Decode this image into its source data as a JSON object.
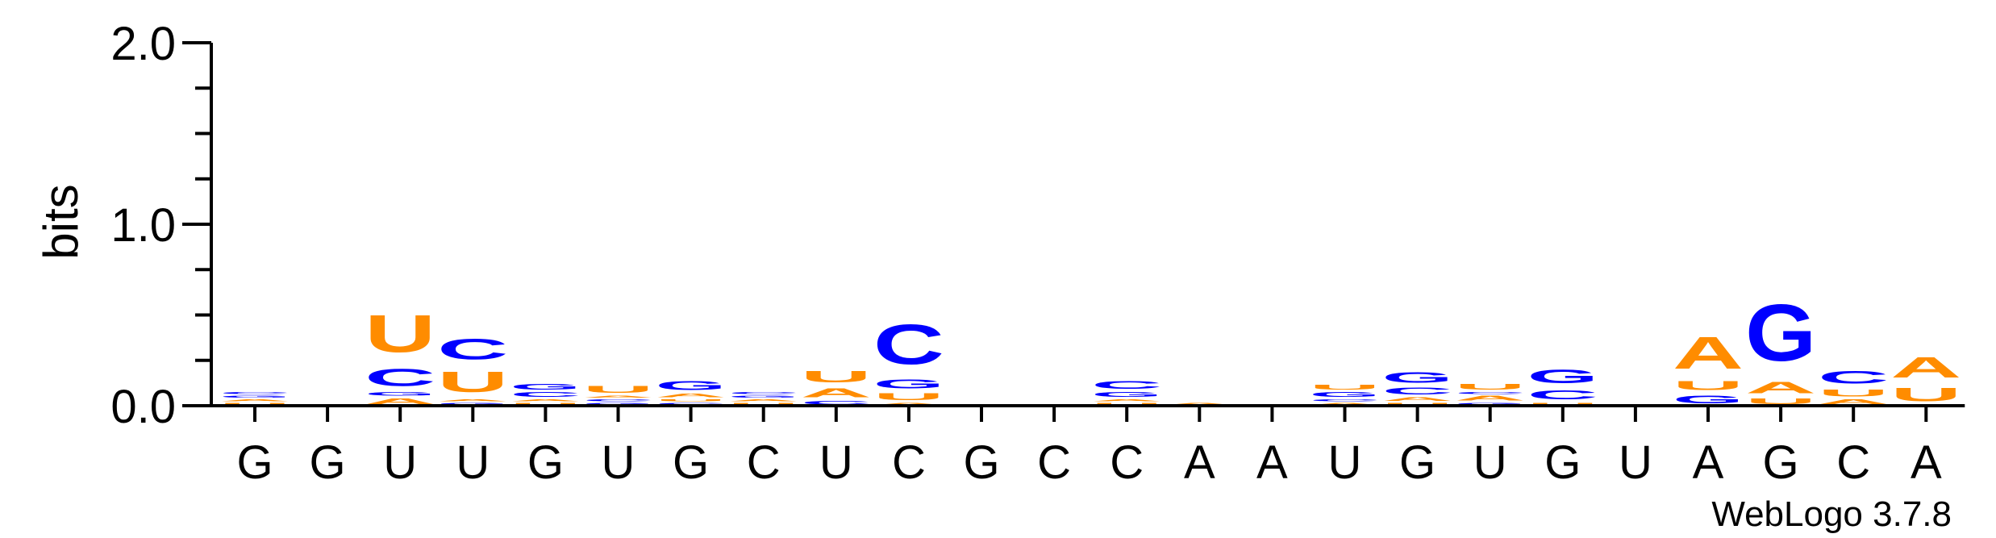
{
  "chart_data": {
    "type": "sequence-logo",
    "ylabel": "bits",
    "ylim": [
      0,
      2.0
    ],
    "yticks": [
      "0.0",
      "1.0",
      "2.0"
    ],
    "credit": "WebLogo 3.7.8",
    "colors": {
      "A": "#ff8c00",
      "U": "#ff8c00",
      "C": "#0000ff",
      "G": "#0000ff"
    },
    "consensus": [
      "G",
      "G",
      "U",
      "U",
      "G",
      "U",
      "G",
      "C",
      "U",
      "C",
      "G",
      "C",
      "C",
      "A",
      "A",
      "U",
      "G",
      "U",
      "G",
      "U",
      "A",
      "G",
      "C",
      "A"
    ],
    "stacks": [
      [
        {
          "l": "U",
          "h": 0.02
        },
        {
          "l": "A",
          "h": 0.02
        },
        {
          "l": "G",
          "h": 0.02
        },
        {
          "l": "C",
          "h": 0.02
        }
      ],
      [],
      [
        {
          "l": "A",
          "h": 0.05
        },
        {
          "l": "G",
          "h": 0.03
        },
        {
          "l": "C",
          "h": 0.15
        },
        {
          "l": "U",
          "h": 0.33
        }
      ],
      [
        {
          "l": "G",
          "h": 0.02
        },
        {
          "l": "A",
          "h": 0.02
        },
        {
          "l": "U",
          "h": 0.18
        },
        {
          "l": "C",
          "h": 0.18
        }
      ],
      [
        {
          "l": "U",
          "h": 0.02
        },
        {
          "l": "A",
          "h": 0.02
        },
        {
          "l": "C",
          "h": 0.04
        },
        {
          "l": "G",
          "h": 0.05
        }
      ],
      [
        {
          "l": "G",
          "h": 0.02
        },
        {
          "l": "C",
          "h": 0.02
        },
        {
          "l": "A",
          "h": 0.02
        },
        {
          "l": "U",
          "h": 0.06
        }
      ],
      [
        {
          "l": "C",
          "h": 0.02
        },
        {
          "l": "U",
          "h": 0.02
        },
        {
          "l": "A",
          "h": 0.03
        },
        {
          "l": "G",
          "h": 0.08
        }
      ],
      [
        {
          "l": "U",
          "h": 0.02
        },
        {
          "l": "A",
          "h": 0.02
        },
        {
          "l": "G",
          "h": 0.02
        },
        {
          "l": "C",
          "h": 0.02
        }
      ],
      [
        {
          "l": "C",
          "h": 0.03
        },
        {
          "l": "A",
          "h": 0.08
        },
        {
          "l": "U",
          "h": 0.1
        }
      ],
      [
        {
          "l": "A",
          "h": 0.02
        },
        {
          "l": "U",
          "h": 0.06
        },
        {
          "l": "G",
          "h": 0.08
        },
        {
          "l": "C",
          "h": 0.35
        }
      ],
      [],
      [],
      [
        {
          "l": "U",
          "h": 0.02
        },
        {
          "l": "A",
          "h": 0.02
        },
        {
          "l": "G",
          "h": 0.04
        },
        {
          "l": "C",
          "h": 0.07
        }
      ],
      [
        {
          "l": "A",
          "h": 0.02
        }
      ],
      [],
      [
        {
          "l": "A",
          "h": 0.02
        },
        {
          "l": "C",
          "h": 0.02
        },
        {
          "l": "G",
          "h": 0.04
        },
        {
          "l": "U",
          "h": 0.04
        }
      ],
      [
        {
          "l": "U",
          "h": 0.02
        },
        {
          "l": "A",
          "h": 0.03
        },
        {
          "l": "C",
          "h": 0.06
        },
        {
          "l": "G",
          "h": 0.09
        }
      ],
      [
        {
          "l": "G",
          "h": 0.02
        },
        {
          "l": "A",
          "h": 0.04
        },
        {
          "l": "C",
          "h": 0.02
        },
        {
          "l": "U",
          "h": 0.05
        }
      ],
      [
        {
          "l": "U",
          "h": 0.02
        },
        {
          "l": "C",
          "h": 0.08
        },
        {
          "l": "G",
          "h": 0.12
        }
      ],
      [],
      [
        {
          "l": "G",
          "h": 0.07
        },
        {
          "l": "U",
          "h": 0.08
        },
        {
          "l": "A",
          "h": 0.28
        }
      ],
      [
        {
          "l": "U",
          "h": 0.05
        },
        {
          "l": "A",
          "h": 0.1
        },
        {
          "l": "G",
          "h": 0.5
        }
      ],
      [
        {
          "l": "A",
          "h": 0.04
        },
        {
          "l": "U",
          "h": 0.06
        },
        {
          "l": "C",
          "h": 0.11
        }
      ],
      [
        {
          "l": "U",
          "h": 0.12
        },
        {
          "l": "A",
          "h": 0.18
        }
      ]
    ]
  }
}
